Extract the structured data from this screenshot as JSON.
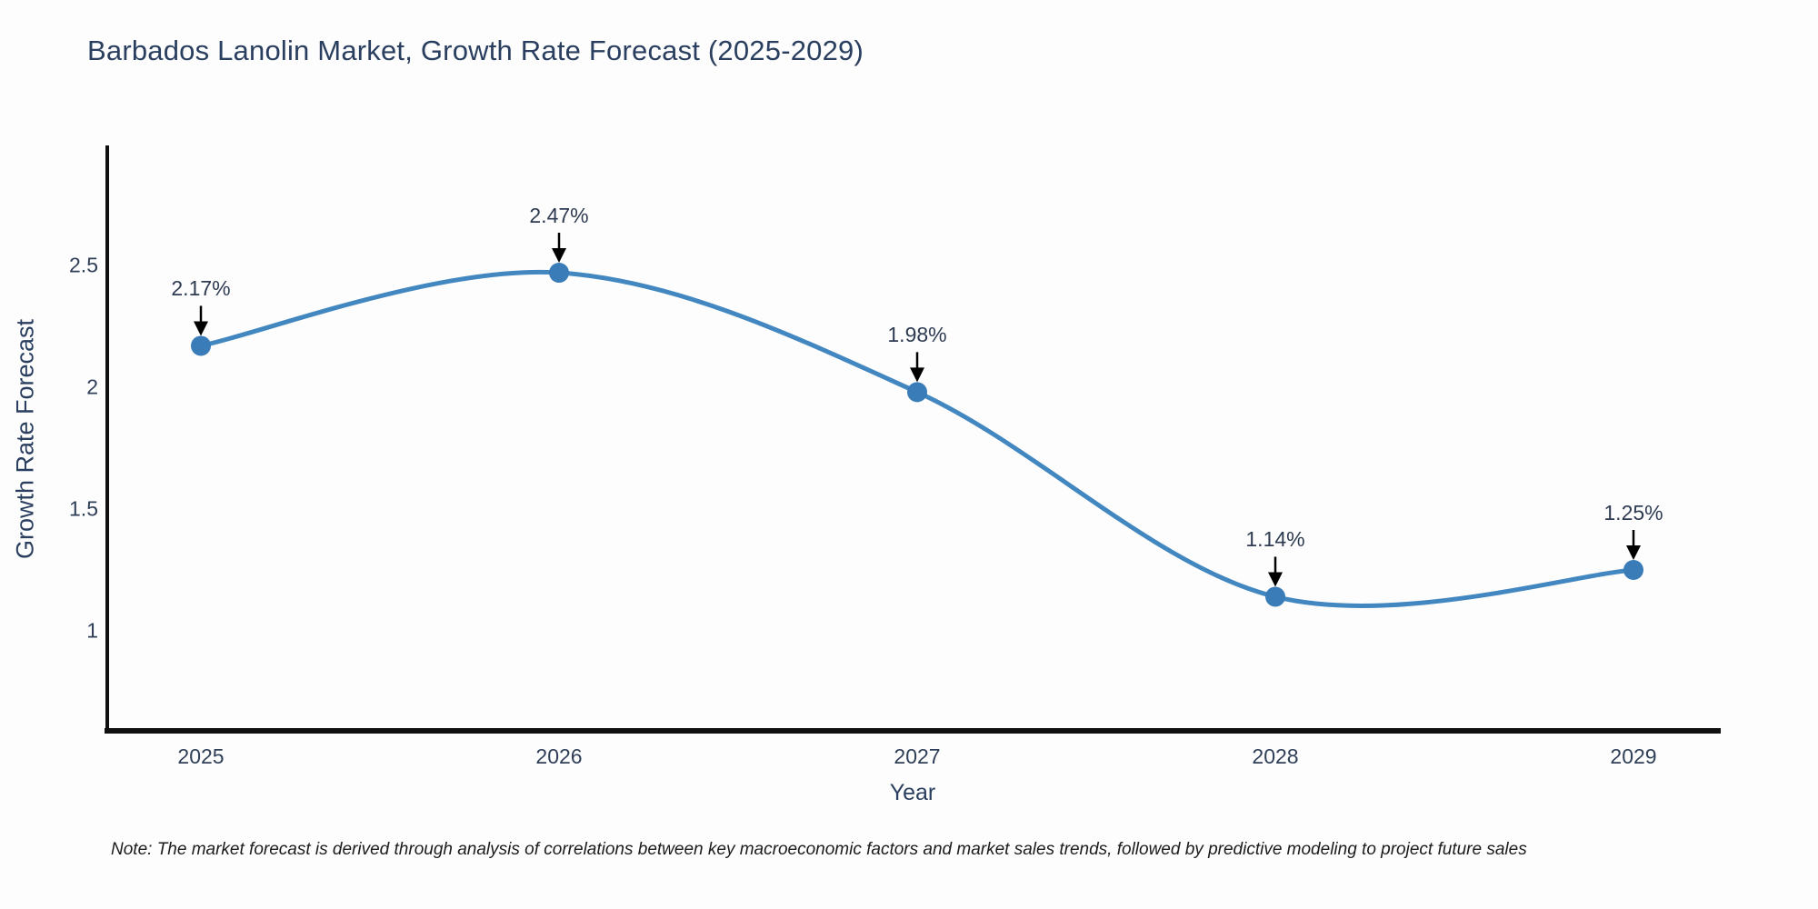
{
  "title": "Barbados Lanolin Market, Growth Rate Forecast (2025-2029)",
  "note": "Note: The market forecast is derived through analysis of correlations between key macroeconomic factors and market sales trends, followed by predictive modeling to project future sales",
  "chart_data": {
    "type": "line",
    "title": "Barbados Lanolin Market, Growth Rate Forecast (2025-2029)",
    "xlabel": "Year",
    "ylabel": "Growth Rate Forecast",
    "categories": [
      "2025",
      "2026",
      "2027",
      "2028",
      "2029"
    ],
    "values": [
      2.17,
      2.47,
      1.98,
      1.14,
      1.25
    ],
    "annotations": [
      "2.17%",
      "2.47%",
      "1.98%",
      "1.14%",
      "1.25%"
    ],
    "yticks": [
      2.5,
      2,
      1.5,
      1
    ],
    "ylim": [
      0.6,
      2.99
    ],
    "line_shape": "spline",
    "grid": false,
    "legend": "none",
    "markers": true
  },
  "colors": {
    "line": "#4287c0",
    "marker": "#3a7cb8",
    "axis": "#101010",
    "title_text": "#2a3f5f",
    "tick_text": "#2f3f58",
    "annotation_text": "#2e3b52",
    "arrow": "#000000",
    "background": "#fdfdfd"
  }
}
